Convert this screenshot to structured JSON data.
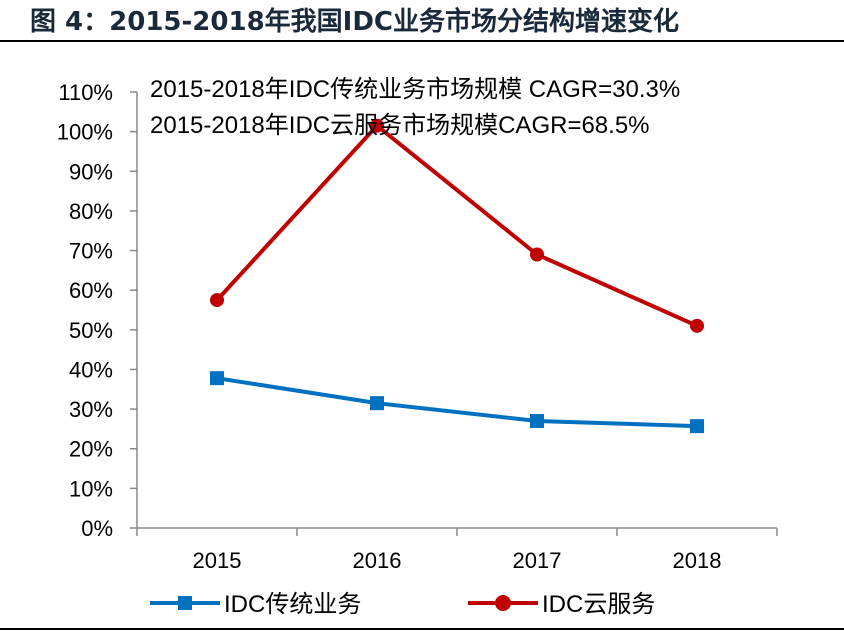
{
  "chart_data": {
    "type": "line",
    "title": "图 4：2015-2018年我国IDC业务市场分结构增速变化",
    "categories": [
      "2015",
      "2016",
      "2017",
      "2018"
    ],
    "ylim": [
      0,
      110
    ],
    "yticks": [
      "0%",
      "10%",
      "20%",
      "30%",
      "40%",
      "50%",
      "60%",
      "70%",
      "80%",
      "90%",
      "100%",
      "110%"
    ],
    "grid": false,
    "legend_position": "bottom",
    "annotations": [
      "2015-2018年IDC传统业务市场规模 CAGR=30.3%",
      "2015-2018年IDC云服务市场规模CAGR=68.5%"
    ],
    "series": [
      {
        "name": "IDC传统业务",
        "marker": "square",
        "color": "#0070c0",
        "values": [
          37.8,
          31.5,
          27.0,
          25.7
        ]
      },
      {
        "name": "IDC云服务",
        "marker": "circle",
        "color": "#c00000",
        "values": [
          57.5,
          101.5,
          69.0,
          51.0
        ]
      }
    ]
  }
}
